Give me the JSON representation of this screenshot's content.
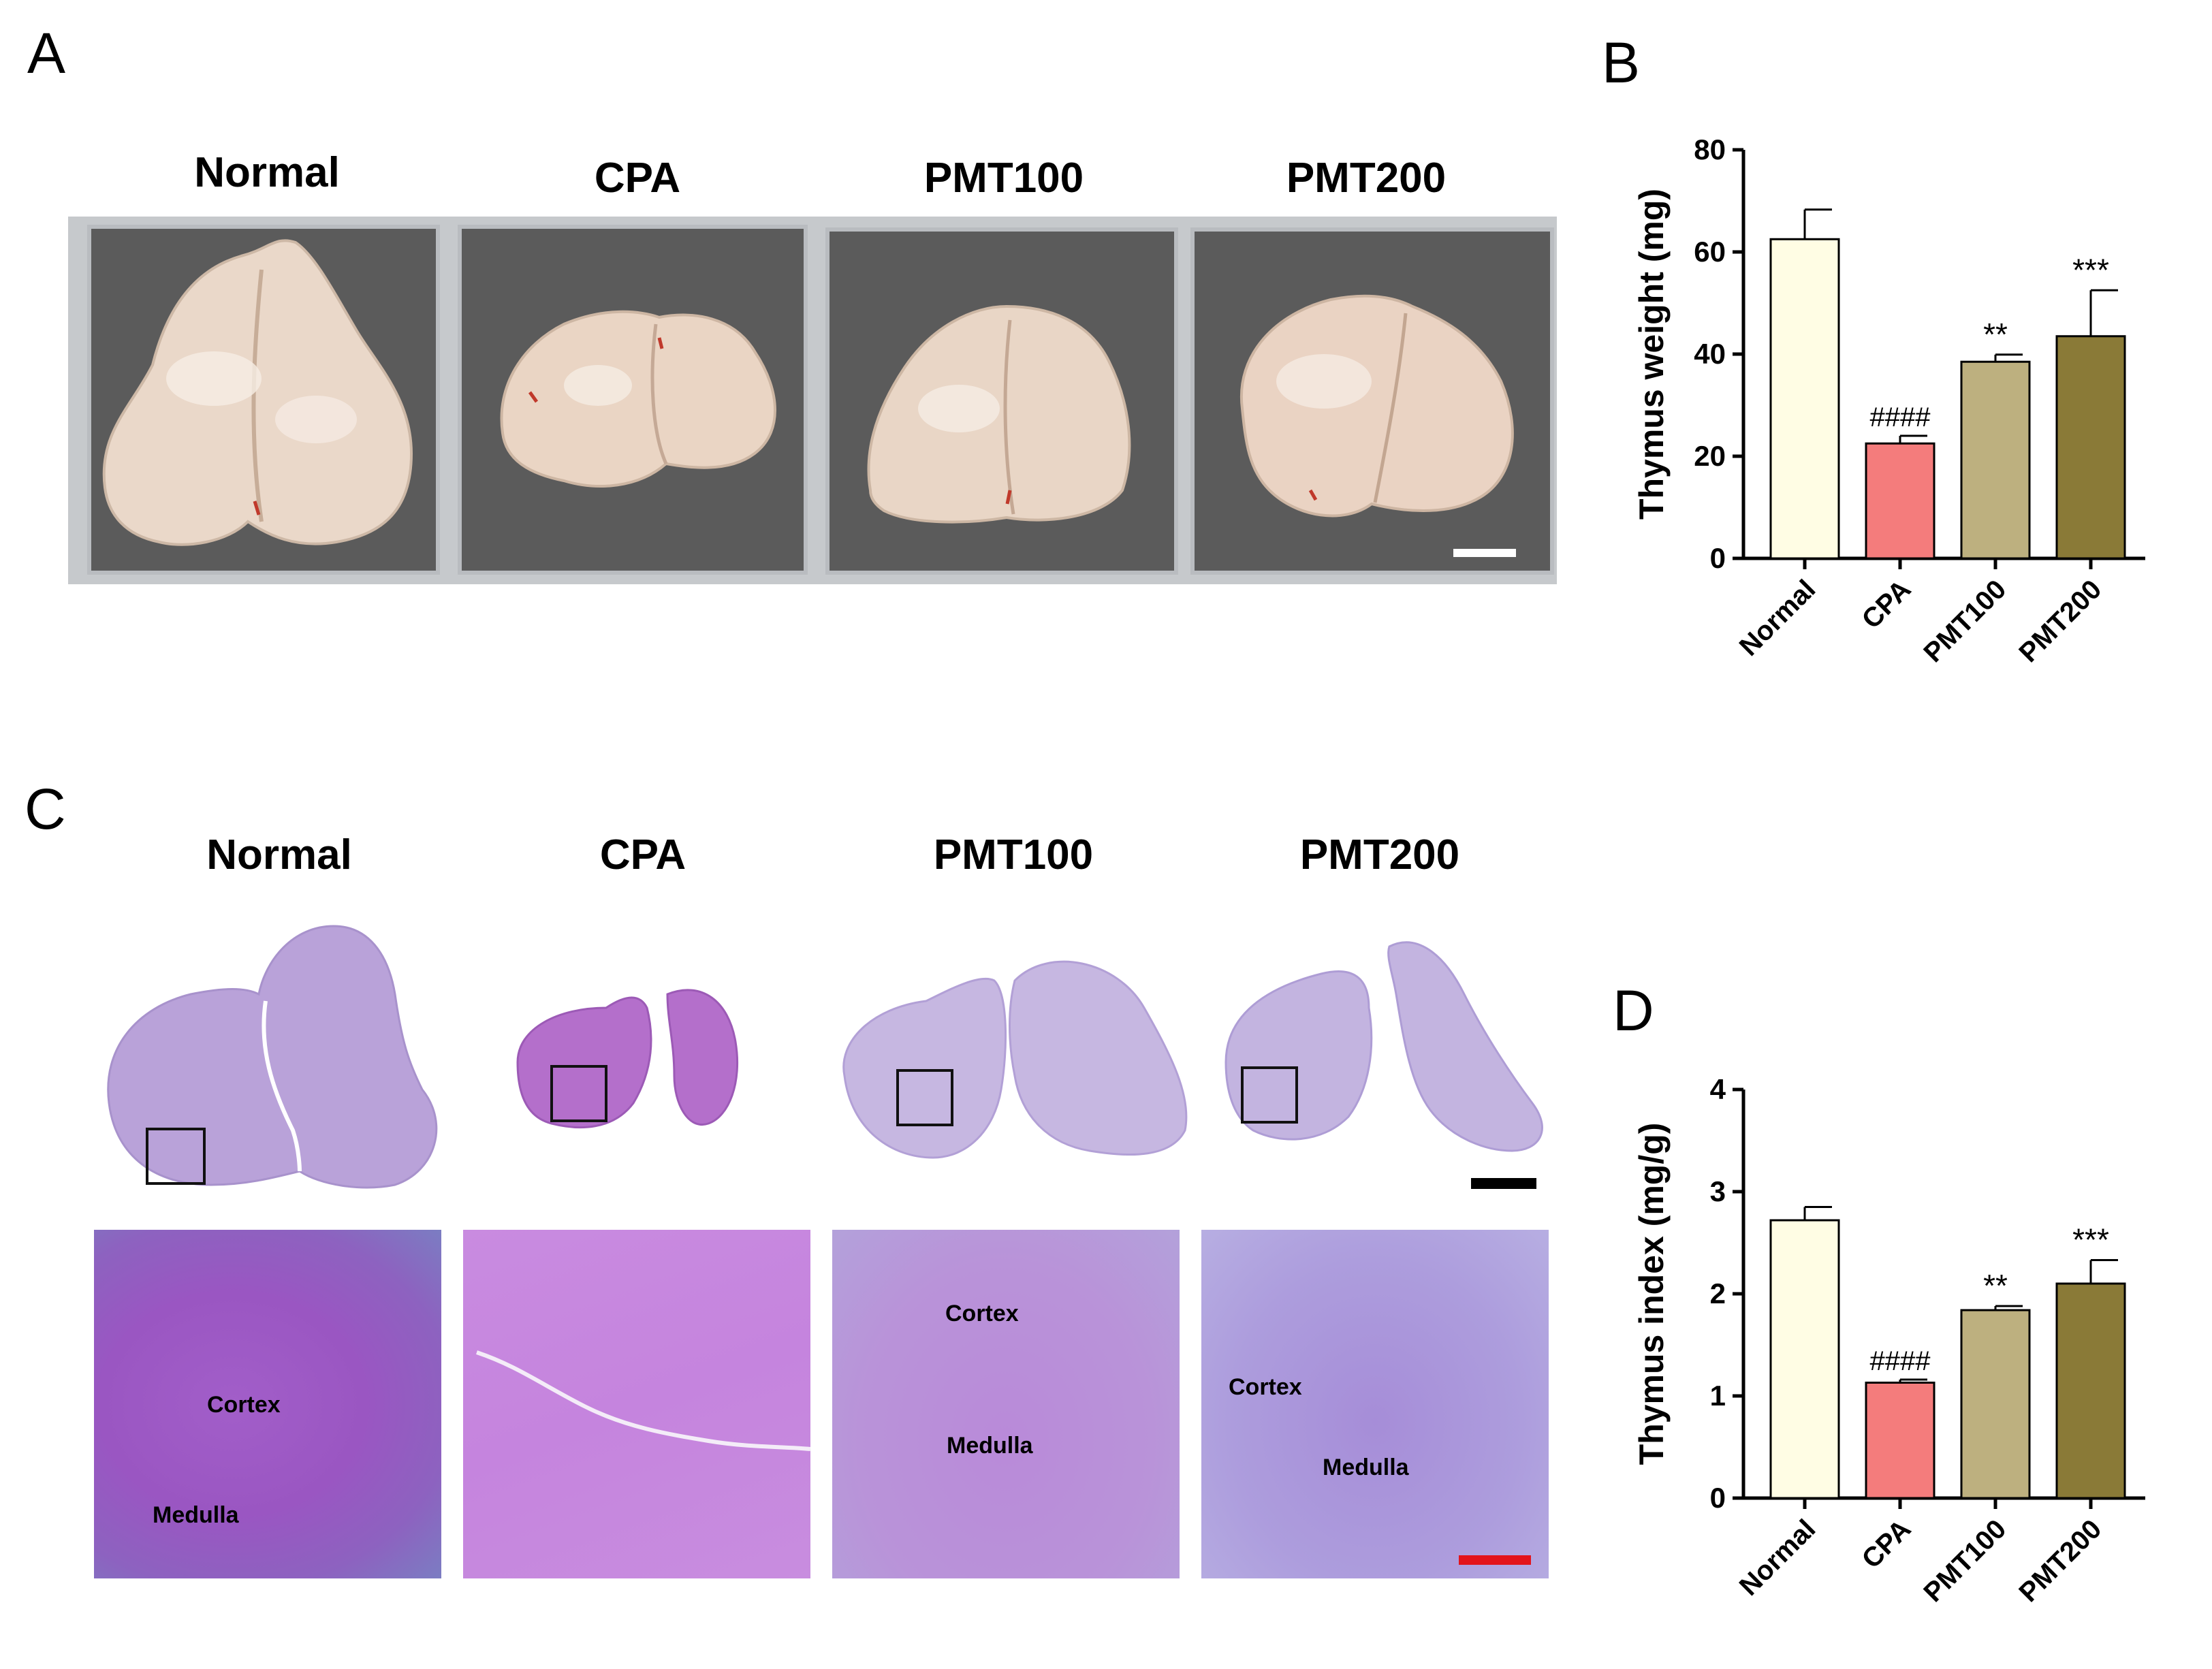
{
  "panels": {
    "a": "A",
    "b": "B",
    "c": "C",
    "d": "D"
  },
  "groups": [
    "Normal",
    "CPA",
    "PMT100",
    "PMT200"
  ],
  "histology": {
    "cortex_label": "Cortex",
    "medulla_label": "Medulla"
  },
  "colors": {
    "normal": "#fffde4",
    "cpa": "#f47c7c",
    "pmt100": "#bdb07f",
    "pmt200": "#8a7a37",
    "scale_red": "#e3141b"
  },
  "chart_data": [
    {
      "type": "bar",
      "panel": "B",
      "title": "",
      "ylabel": "Thymus weight (mg)",
      "xlabel": "",
      "categories": [
        "Normal",
        "CPA",
        "PMT100",
        "PMT200"
      ],
      "values": [
        62.5,
        22.5,
        38.5,
        43.5
      ],
      "errors": [
        5.8,
        1.5,
        1.4,
        9.0
      ],
      "annotations": [
        "",
        "####",
        "**",
        "***"
      ],
      "ylim": [
        0,
        80
      ],
      "yticks": [
        0,
        20,
        40,
        60,
        80
      ]
    },
    {
      "type": "bar",
      "panel": "D",
      "title": "",
      "ylabel": "Thymus index (mg/g)",
      "xlabel": "",
      "categories": [
        "Normal",
        "CPA",
        "PMT100",
        "PMT200"
      ],
      "values": [
        2.72,
        1.13,
        1.84,
        2.1
      ],
      "errors": [
        0.13,
        0.03,
        0.04,
        0.23
      ],
      "annotations": [
        "",
        "####",
        "**",
        "***"
      ],
      "ylim": [
        0,
        4
      ],
      "yticks": [
        0,
        1,
        2,
        3,
        4
      ]
    }
  ]
}
